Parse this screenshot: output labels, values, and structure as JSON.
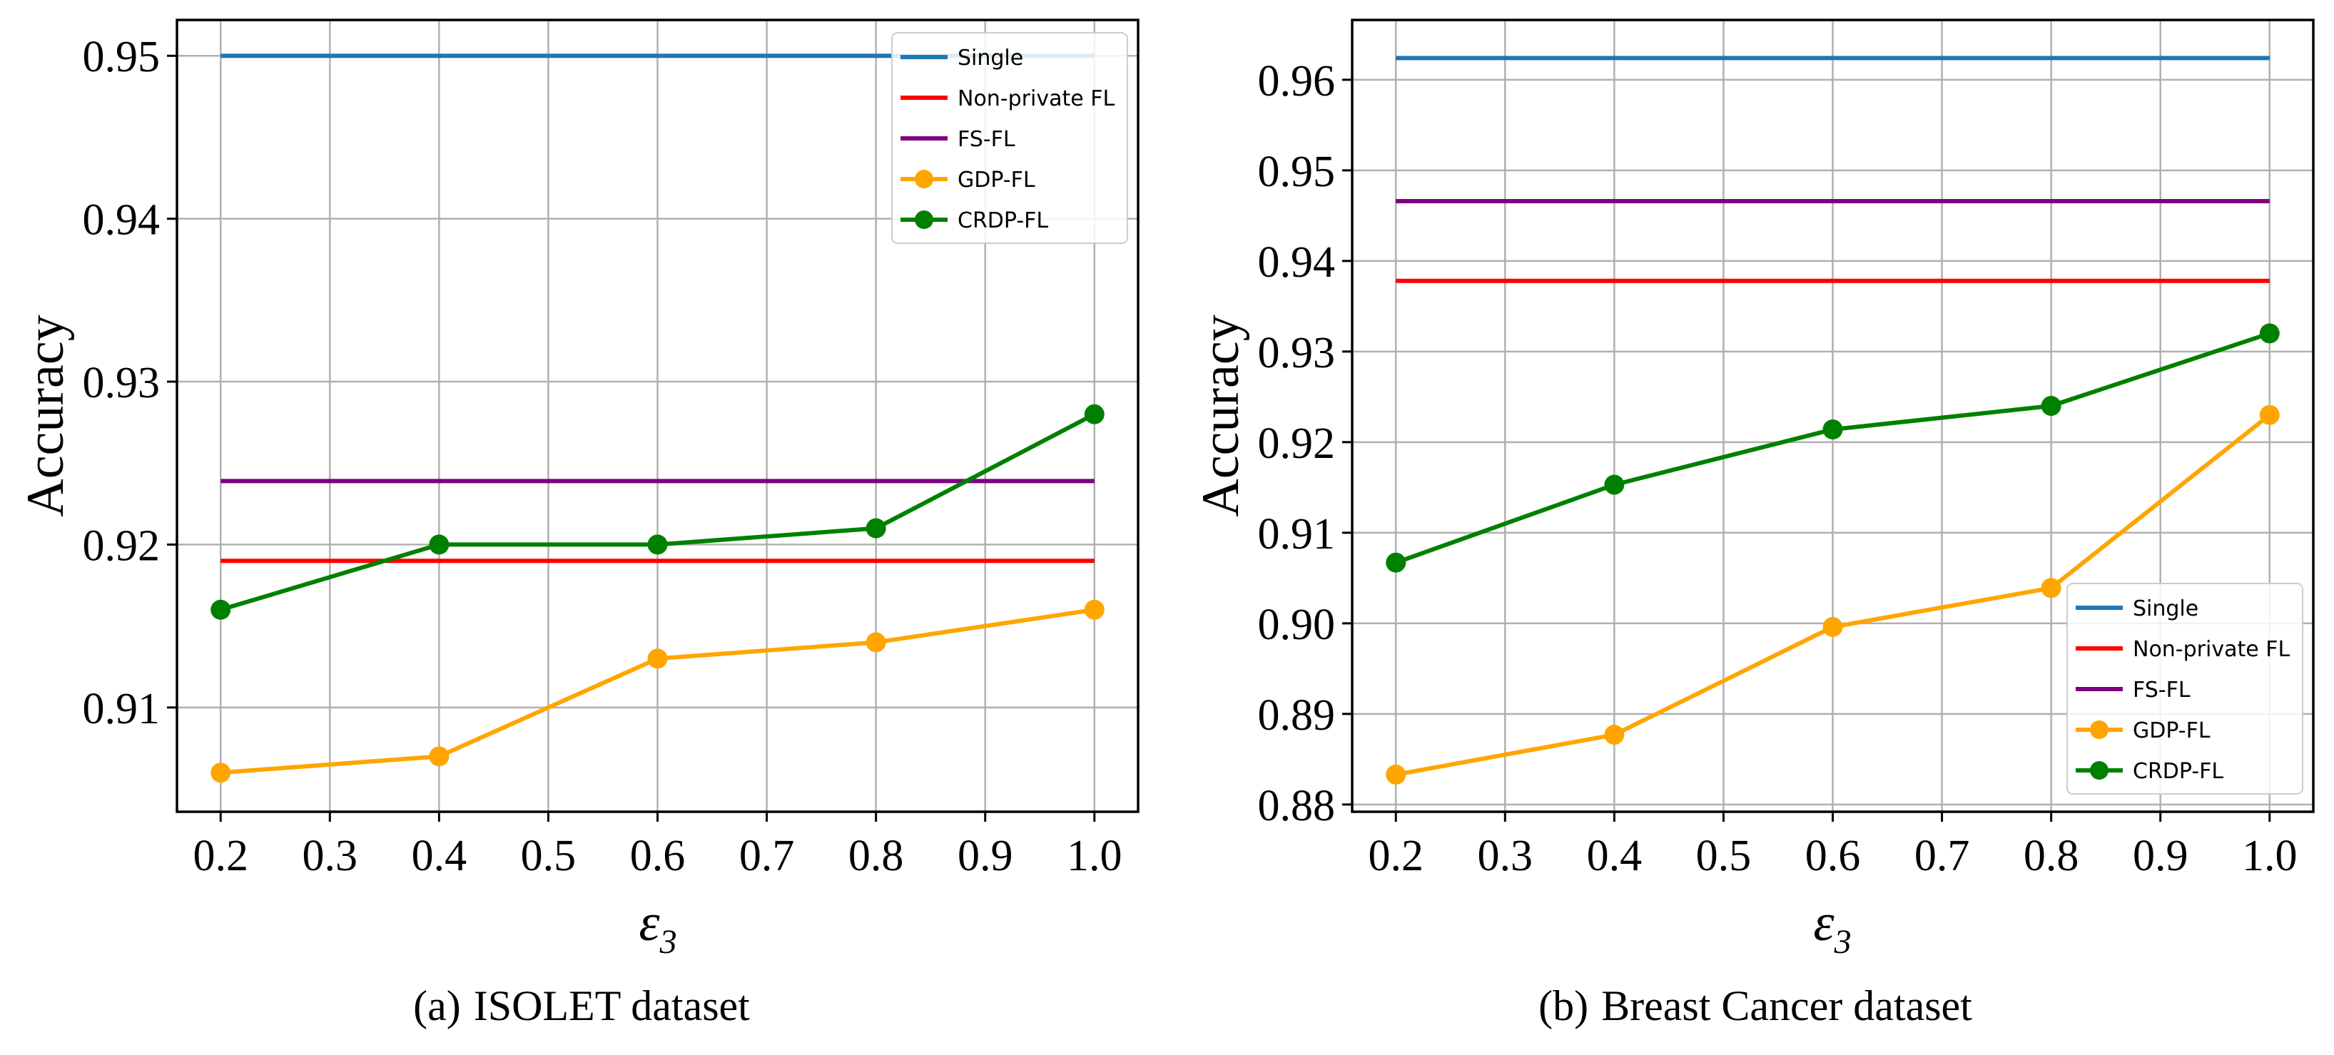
{
  "chart_data": [
    {
      "type": "line",
      "caption_tag": "(a)",
      "caption": "ISOLET dataset",
      "xlabel": "ε",
      "xlabel_sub": "3",
      "ylabel": "Accuracy",
      "x": [
        0.2,
        0.4,
        0.6,
        0.8,
        1.0
      ],
      "xlim": [
        0.16,
        1.04
      ],
      "ylim": [
        0.9036,
        0.9522
      ],
      "xticks": [
        0.2,
        0.3,
        0.4,
        0.5,
        0.6,
        0.7,
        0.8,
        0.9,
        1.0
      ],
      "xtick_labels": [
        "0.2",
        "0.3",
        "0.4",
        "0.5",
        "0.6",
        "0.7",
        "0.8",
        "0.9",
        "1.0"
      ],
      "yticks": [
        0.91,
        0.92,
        0.93,
        0.94,
        0.95
      ],
      "ytick_labels": [
        "0.91",
        "0.92",
        "0.93",
        "0.94",
        "0.95"
      ],
      "grid": true,
      "legend_position": "top-right",
      "series": [
        {
          "name": "Single",
          "color": "#1f77b4",
          "values": [
            0.95,
            0.95,
            0.95,
            0.95,
            0.95
          ],
          "markers": false
        },
        {
          "name": "Non-private FL",
          "color": "#ff0000",
          "values": [
            0.919,
            0.919,
            0.919,
            0.919,
            0.919
          ],
          "markers": false
        },
        {
          "name": "FS-FL",
          "color": "#800080",
          "values": [
            0.9239,
            0.9239,
            0.9239,
            0.9239,
            0.9239
          ],
          "markers": false
        },
        {
          "name": "GDP-FL",
          "color": "#ffa500",
          "values": [
            0.906,
            0.907,
            0.913,
            0.914,
            0.916
          ],
          "markers": true
        },
        {
          "name": "CRDP-FL",
          "color": "#008000",
          "values": [
            0.916,
            0.92,
            0.92,
            0.921,
            0.928
          ],
          "markers": true
        }
      ]
    },
    {
      "type": "line",
      "caption_tag": "(b)",
      "caption": "Breast Cancer dataset",
      "xlabel": "ε",
      "xlabel_sub": "3",
      "ylabel": "Accuracy",
      "x": [
        0.2,
        0.4,
        0.6,
        0.8,
        1.0
      ],
      "xlim": [
        0.16,
        1.04
      ],
      "ylim": [
        0.8792,
        0.9666
      ],
      "xticks": [
        0.2,
        0.3,
        0.4,
        0.5,
        0.6,
        0.7,
        0.8,
        0.9,
        1.0
      ],
      "xtick_labels": [
        "0.2",
        "0.3",
        "0.4",
        "0.5",
        "0.6",
        "0.7",
        "0.8",
        "0.9",
        "1.0"
      ],
      "yticks": [
        0.88,
        0.89,
        0.9,
        0.91,
        0.92,
        0.93,
        0.94,
        0.95,
        0.96
      ],
      "ytick_labels": [
        "0.88",
        "0.89",
        "0.90",
        "0.91",
        "0.92",
        "0.93",
        "0.94",
        "0.95",
        "0.96"
      ],
      "grid": true,
      "legend_position": "bottom-right",
      "series": [
        {
          "name": "Single",
          "color": "#1f77b4",
          "values": [
            0.9624,
            0.9624,
            0.9624,
            0.9624,
            0.9624
          ],
          "markers": false
        },
        {
          "name": "Non-private FL",
          "color": "#ff0000",
          "values": [
            0.9378,
            0.9378,
            0.9378,
            0.9378,
            0.9378
          ],
          "markers": false
        },
        {
          "name": "FS-FL",
          "color": "#800080",
          "values": [
            0.9466,
            0.9466,
            0.9466,
            0.9466,
            0.9466
          ],
          "markers": false
        },
        {
          "name": "GDP-FL",
          "color": "#ffa500",
          "values": [
            0.8833,
            0.8877,
            0.8996,
            0.9039,
            0.923
          ],
          "markers": true
        },
        {
          "name": "CRDP-FL",
          "color": "#008000",
          "values": [
            0.9067,
            0.9153,
            0.9214,
            0.924,
            0.932
          ],
          "markers": true
        }
      ]
    }
  ]
}
